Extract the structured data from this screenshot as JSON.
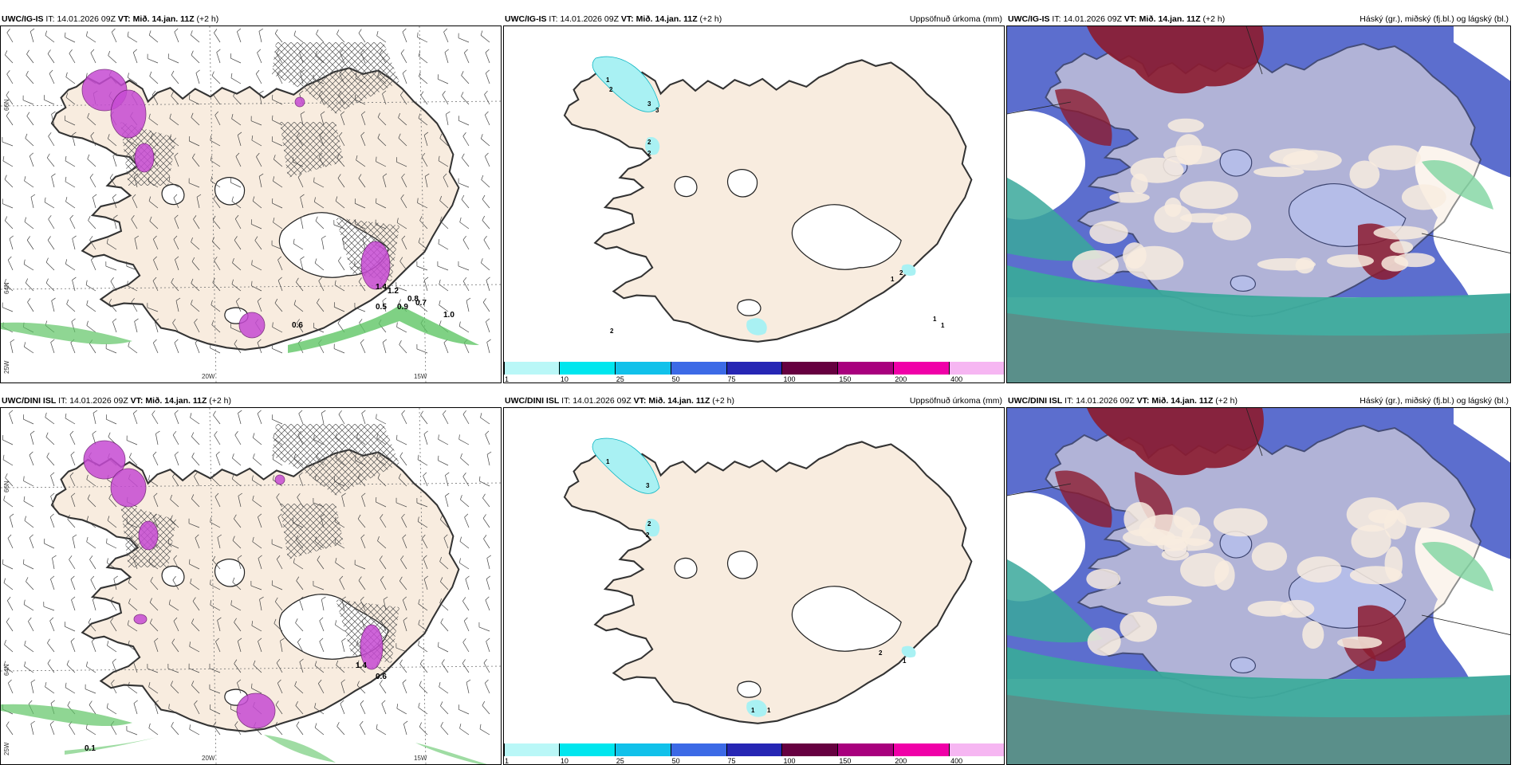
{
  "rows": [
    {
      "model": "UWC/IG-IS",
      "it_label": "IT:",
      "it_value": "14.01.2026 09Z",
      "vt_label": "VT:",
      "vt_value": "Mið. 14.jan. 11Z",
      "lead": "(+2 h)",
      "precip_title": "Uppsöfnuð úrkoma (mm)",
      "cloud_title": "Háský (gr.), miðský (fj.bl.) og lágský (bl.)",
      "precip_labels": [
        "1.0",
        "0.6",
        "0.5",
        "0.9",
        "0.7",
        "0.8",
        "1.2",
        "1.4"
      ],
      "accum_labels": [
        "1",
        "3",
        "3",
        "2",
        "2",
        "2",
        "1",
        "2",
        "1",
        "1",
        "2"
      ]
    },
    {
      "model": "UWC/DINI ISL",
      "it_label": "IT:",
      "it_value": "14.01.2026 09Z",
      "vt_label": "VT:",
      "vt_value": "Mið. 14.jan. 11Z",
      "lead": "(+2 h)",
      "precip_title": "Uppsöfnuð úrkoma (mm)",
      "cloud_title": "Háský (gr.), miðský (fj.bl.) og lágský (bl.)",
      "precip_labels": [
        "1.4",
        "0.6",
        "0.1"
      ],
      "accum_labels": [
        "1",
        "3",
        "2",
        "2",
        "2",
        "1",
        "1",
        "1"
      ]
    }
  ],
  "axis_labels": {
    "lat66": "66N",
    "lat64": "64N",
    "lon25": "25W",
    "lon20": "20W",
    "lon15": "15W"
  },
  "colorbar": {
    "ticks": [
      "1",
      "10",
      "25",
      "50",
      "75",
      "100",
      "150",
      "200",
      "400"
    ],
    "colors": [
      "#b9f7f7",
      "#00e6ee",
      "#11c1ea",
      "#3c6ae6",
      "#2626b4",
      "#660040",
      "#a8007d",
      "#f000a8",
      "#f6b6f2"
    ]
  },
  "colors": {
    "land": "#f8ecdf",
    "ice": "#ffffff",
    "precip_magenta": "#c64bd3",
    "precip_green": "#5fc565",
    "high_cloud": "#6d7879",
    "mid_cloud": "#4a5ec9",
    "low_cloud": "#3aa89b",
    "thick_cloud": "#8c1b2f"
  }
}
